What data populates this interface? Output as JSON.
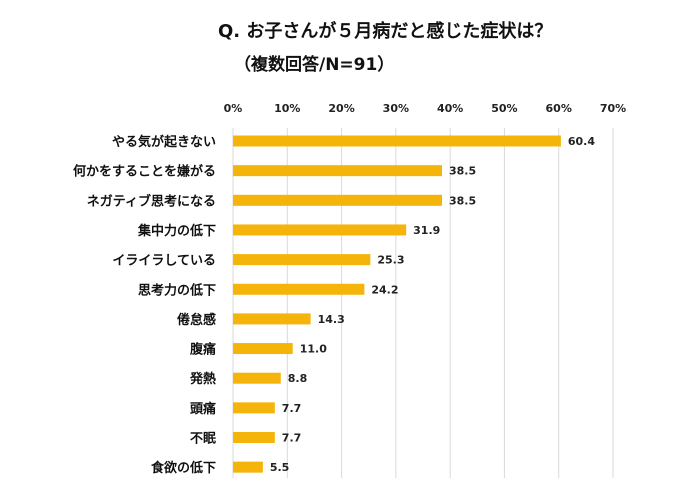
{
  "chart_data": {
    "type": "bar",
    "orientation": "horizontal",
    "title": "Q. お子さんが５月病だと感じた症状は？",
    "subtitle": "（複数回答/N=91）",
    "categories": [
      "やる気が起きない",
      "何かをすることを嫌がる",
      "ネガティブ思考になる",
      "集中力の低下",
      "イライラしている",
      "思考力の低下",
      "倦怠感",
      "腹痛",
      "発熱",
      "頭痛",
      "不眠",
      "食欲の低下"
    ],
    "values": [
      60.4,
      38.5,
      38.5,
      31.9,
      25.3,
      24.2,
      14.3,
      11.0,
      8.8,
      7.7,
      7.7,
      5.5
    ],
    "value_labels": [
      "60.4",
      "38.5",
      "38.5",
      "31.9",
      "25.3",
      "24.2",
      "14.3",
      "11.0",
      "8.8",
      "7.7",
      "7.7",
      "5.5"
    ],
    "xlim": [
      0,
      70
    ],
    "x_ticks": [
      "0%",
      "10%",
      "20%",
      "30%",
      "40%",
      "50%",
      "60%",
      "70%"
    ],
    "x_axis_position": "top",
    "grid": true,
    "bar_color": "#F5B40A",
    "grid_color": "#D9D9D9"
  }
}
